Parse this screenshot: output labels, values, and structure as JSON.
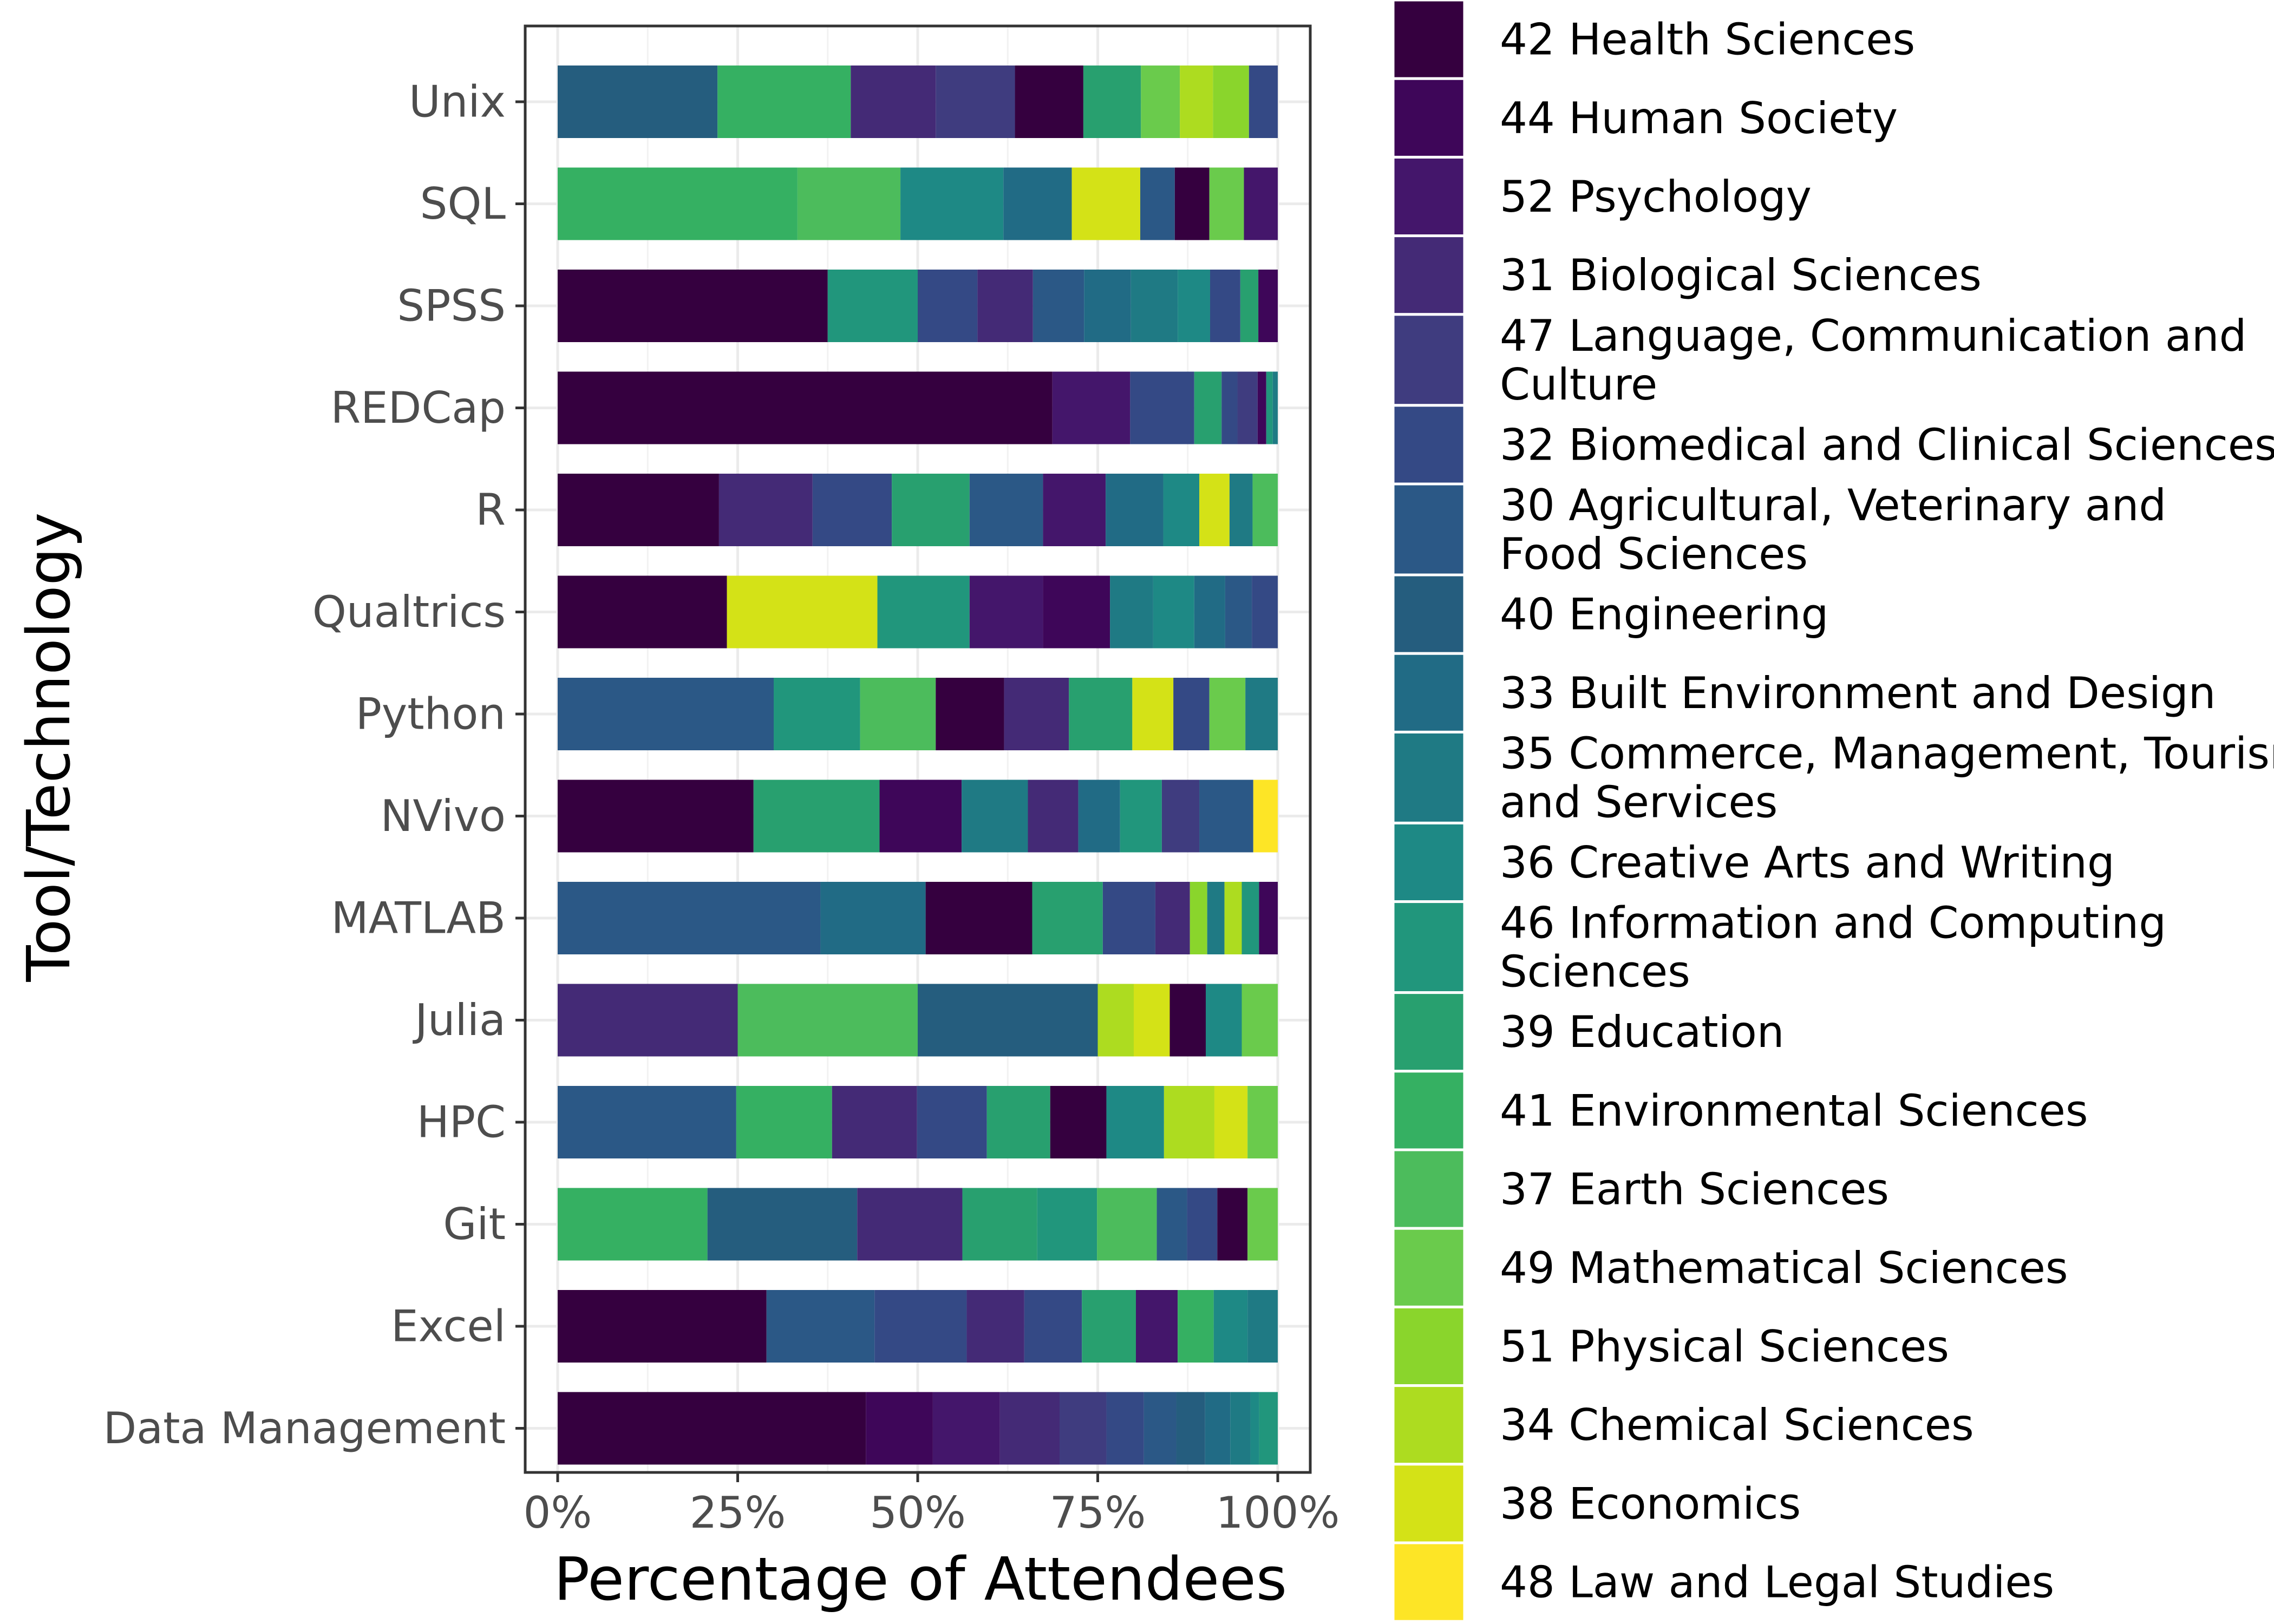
{
  "chart_data": {
    "type": "bar",
    "orientation": "horizontal",
    "stacked": true,
    "normalized": true,
    "xlabel": "Percentage of Attendees",
    "ylabel": "Tool/Technology",
    "x_ticks": [
      "0%",
      "25%",
      "50%",
      "75%",
      "100%"
    ],
    "xlim": [
      0,
      1
    ],
    "grid": true,
    "legend_position": "right",
    "categories": [
      "Unix",
      "SQL",
      "SPSS",
      "REDCap",
      "R",
      "Qualtrics",
      "Python",
      "NVivo",
      "MATLAB",
      "Julia",
      "HPC",
      "Git",
      "Excel",
      "Data Management"
    ],
    "legend": [
      {
        "key": "42",
        "label": [
          "42 Health Sciences"
        ],
        "color": "#35003f"
      },
      {
        "key": "44",
        "label": [
          "44 Human Society"
        ],
        "color": "#3e0659"
      },
      {
        "key": "52",
        "label": [
          "52 Psychology"
        ],
        "color": "#44166b"
      },
      {
        "key": "31",
        "label": [
          "31 Biological Sciences"
        ],
        "color": "#442a76"
      },
      {
        "key": "47",
        "label": [
          "47 Language, Communication and",
          "Culture"
        ],
        "color": "#3f3c7f"
      },
      {
        "key": "32",
        "label": [
          "32 Biomedical and Clinical Sciences"
        ],
        "color": "#344985"
      },
      {
        "key": "30",
        "label": [
          "30 Agricultural, Veterinary and",
          "Food Sciences"
        ],
        "color": "#2b5886"
      },
      {
        "key": "40",
        "label": [
          "40 Engineering"
        ],
        "color": "#255d7e"
      },
      {
        "key": "33",
        "label": [
          "33 Built Environment and Design"
        ],
        "color": "#216b85"
      },
      {
        "key": "35",
        "label": [
          "35 Commerce, Management, Tourism",
          "and Services"
        ],
        "color": "#1f7a84"
      },
      {
        "key": "36",
        "label": [
          "36 Creative Arts and Writing"
        ],
        "color": "#1e8985"
      },
      {
        "key": "46",
        "label": [
          "46 Information and Computing",
          "Sciences"
        ],
        "color": "#21967c"
      },
      {
        "key": "39",
        "label": [
          "39 Education"
        ],
        "color": "#28a06f"
      },
      {
        "key": "41",
        "label": [
          "41 Environmental Sciences"
        ],
        "color": "#35b062"
      },
      {
        "key": "37",
        "label": [
          "37 Earth Sciences"
        ],
        "color": "#4cbc5c"
      },
      {
        "key": "49",
        "label": [
          "49 Mathematical Sciences"
        ],
        "color": "#6acb4c"
      },
      {
        "key": "51",
        "label": [
          "51 Physical Sciences"
        ],
        "color": "#8ad52c"
      },
      {
        "key": "34",
        "label": [
          "34 Chemical Sciences"
        ],
        "color": "#addc20"
      },
      {
        "key": "38",
        "label": [
          "38 Economics"
        ],
        "color": "#d4e217"
      },
      {
        "key": "48",
        "label": [
          "48 Law and Legal Studies"
        ],
        "color": "#fde526"
      }
    ],
    "series_values": {
      "Unix": [
        {
          "key": "40",
          "value": 0.222
        },
        {
          "key": "41",
          "value": 0.185
        },
        {
          "key": "31",
          "value": 0.118
        },
        {
          "key": "47",
          "value": 0.11
        },
        {
          "key": "42",
          "value": 0.095
        },
        {
          "key": "39",
          "value": 0.08
        },
        {
          "key": "49",
          "value": 0.054
        },
        {
          "key": "34",
          "value": 0.046
        },
        {
          "key": "51",
          "value": 0.05
        },
        {
          "key": "32",
          "value": 0.04
        }
      ],
      "SQL": [
        {
          "key": "41",
          "value": 0.333
        },
        {
          "key": "37",
          "value": 0.143
        },
        {
          "key": "36",
          "value": 0.143
        },
        {
          "key": "33",
          "value": 0.095
        },
        {
          "key": "38",
          "value": 0.095
        },
        {
          "key": "30",
          "value": 0.048
        },
        {
          "key": "42",
          "value": 0.048
        },
        {
          "key": "49",
          "value": 0.048
        },
        {
          "key": "52",
          "value": 0.047
        }
      ],
      "SPSS": [
        {
          "key": "42",
          "value": 0.375
        },
        {
          "key": "46",
          "value": 0.125
        },
        {
          "key": "32",
          "value": 0.083
        },
        {
          "key": "31",
          "value": 0.077
        },
        {
          "key": "30",
          "value": 0.071
        },
        {
          "key": "33",
          "value": 0.065
        },
        {
          "key": "35",
          "value": 0.065
        },
        {
          "key": "36",
          "value": 0.045
        },
        {
          "key": "32",
          "value": 0.042
        },
        {
          "key": "39",
          "value": 0.025
        },
        {
          "key": "44",
          "value": 0.027
        }
      ],
      "REDCap": [
        {
          "key": "42",
          "value": 0.687
        },
        {
          "key": "52",
          "value": 0.108
        },
        {
          "key": "32",
          "value": 0.089
        },
        {
          "key": "39",
          "value": 0.038
        },
        {
          "key": "32",
          "value": 0.022
        },
        {
          "key": "47",
          "value": 0.028
        },
        {
          "key": "44",
          "value": 0.012
        },
        {
          "key": "46",
          "value": 0.009
        },
        {
          "key": "35",
          "value": 0.007
        }
      ],
      "R": [
        {
          "key": "42",
          "value": 0.224
        },
        {
          "key": "31",
          "value": 0.13
        },
        {
          "key": "32",
          "value": 0.11
        },
        {
          "key": "39",
          "value": 0.108
        },
        {
          "key": "30",
          "value": 0.102
        },
        {
          "key": "52",
          "value": 0.087
        },
        {
          "key": "33",
          "value": 0.08
        },
        {
          "key": "36",
          "value": 0.05
        },
        {
          "key": "38",
          "value": 0.042
        },
        {
          "key": "35",
          "value": 0.032
        },
        {
          "key": "37",
          "value": 0.035
        }
      ],
      "Qualtrics": [
        {
          "key": "42",
          "value": 0.235
        },
        {
          "key": "38",
          "value": 0.209
        },
        {
          "key": "46",
          "value": 0.128
        },
        {
          "key": "52",
          "value": 0.102
        },
        {
          "key": "44",
          "value": 0.093
        },
        {
          "key": "35",
          "value": 0.06
        },
        {
          "key": "36",
          "value": 0.057
        },
        {
          "key": "33",
          "value": 0.043
        },
        {
          "key": "30",
          "value": 0.037
        },
        {
          "key": "32",
          "value": 0.036
        }
      ],
      "Python": [
        {
          "key": "30",
          "value": 0.3
        },
        {
          "key": "46",
          "value": 0.12
        },
        {
          "key": "37",
          "value": 0.105
        },
        {
          "key": "42",
          "value": 0.095
        },
        {
          "key": "31",
          "value": 0.09
        },
        {
          "key": "39",
          "value": 0.088
        },
        {
          "key": "38",
          "value": 0.057
        },
        {
          "key": "32",
          "value": 0.05
        },
        {
          "key": "49",
          "value": 0.05
        },
        {
          "key": "35",
          "value": 0.045
        }
      ],
      "NVivo": [
        {
          "key": "42",
          "value": 0.272
        },
        {
          "key": "39",
          "value": 0.175
        },
        {
          "key": "44",
          "value": 0.114
        },
        {
          "key": "35",
          "value": 0.092
        },
        {
          "key": "31",
          "value": 0.07
        },
        {
          "key": "33",
          "value": 0.058
        },
        {
          "key": "46",
          "value": 0.058
        },
        {
          "key": "47",
          "value": 0.052
        },
        {
          "key": "30",
          "value": 0.075
        },
        {
          "key": "48",
          "value": 0.034
        }
      ],
      "MATLAB": [
        {
          "key": "30",
          "value": 0.365
        },
        {
          "key": "33",
          "value": 0.146
        },
        {
          "key": "42",
          "value": 0.148
        },
        {
          "key": "39",
          "value": 0.098
        },
        {
          "key": "32",
          "value": 0.073
        },
        {
          "key": "31",
          "value": 0.048
        },
        {
          "key": "51",
          "value": 0.024
        },
        {
          "key": "35",
          "value": 0.024
        },
        {
          "key": "34",
          "value": 0.024
        },
        {
          "key": "46",
          "value": 0.024
        },
        {
          "key": "44",
          "value": 0.026
        }
      ],
      "Julia": [
        {
          "key": "31",
          "value": 0.25
        },
        {
          "key": "37",
          "value": 0.25
        },
        {
          "key": "40",
          "value": 0.25
        },
        {
          "key": "34",
          "value": 0.05
        },
        {
          "key": "38",
          "value": 0.05
        },
        {
          "key": "42",
          "value": 0.05
        },
        {
          "key": "36",
          "value": 0.05
        },
        {
          "key": "49",
          "value": 0.05
        }
      ],
      "HPC": [
        {
          "key": "30",
          "value": 0.248
        },
        {
          "key": "41",
          "value": 0.133
        },
        {
          "key": "31",
          "value": 0.118
        },
        {
          "key": "32",
          "value": 0.097
        },
        {
          "key": "39",
          "value": 0.088
        },
        {
          "key": "42",
          "value": 0.078
        },
        {
          "key": "36",
          "value": 0.08
        },
        {
          "key": "34",
          "value": 0.07
        },
        {
          "key": "38",
          "value": 0.046
        },
        {
          "key": "49",
          "value": 0.042
        }
      ],
      "Git": [
        {
          "key": "41",
          "value": 0.208
        },
        {
          "key": "40",
          "value": 0.208
        },
        {
          "key": "31",
          "value": 0.146
        },
        {
          "key": "39",
          "value": 0.104
        },
        {
          "key": "46",
          "value": 0.083
        },
        {
          "key": "37",
          "value": 0.083
        },
        {
          "key": "30",
          "value": 0.042
        },
        {
          "key": "32",
          "value": 0.042
        },
        {
          "key": "42",
          "value": 0.042
        },
        {
          "key": "49",
          "value": 0.042
        }
      ],
      "Excel": [
        {
          "key": "42",
          "value": 0.29
        },
        {
          "key": "30",
          "value": 0.15
        },
        {
          "key": "32",
          "value": 0.128
        },
        {
          "key": "31",
          "value": 0.08
        },
        {
          "key": "32",
          "value": 0.08
        },
        {
          "key": "39",
          "value": 0.075
        },
        {
          "key": "52",
          "value": 0.058
        },
        {
          "key": "41",
          "value": 0.05
        },
        {
          "key": "36",
          "value": 0.047
        },
        {
          "key": "35",
          "value": 0.042
        }
      ],
      "Data Management": [
        {
          "key": "42",
          "value": 0.428
        },
        {
          "key": "44",
          "value": 0.093
        },
        {
          "key": "52",
          "value": 0.093
        },
        {
          "key": "31",
          "value": 0.083
        },
        {
          "key": "47",
          "value": 0.065
        },
        {
          "key": "32",
          "value": 0.052
        },
        {
          "key": "30",
          "value": 0.045
        },
        {
          "key": "40",
          "value": 0.04
        },
        {
          "key": "33",
          "value": 0.035
        },
        {
          "key": "35",
          "value": 0.028
        },
        {
          "key": "36",
          "value": 0.012
        },
        {
          "key": "46",
          "value": 0.026
        }
      ]
    }
  }
}
